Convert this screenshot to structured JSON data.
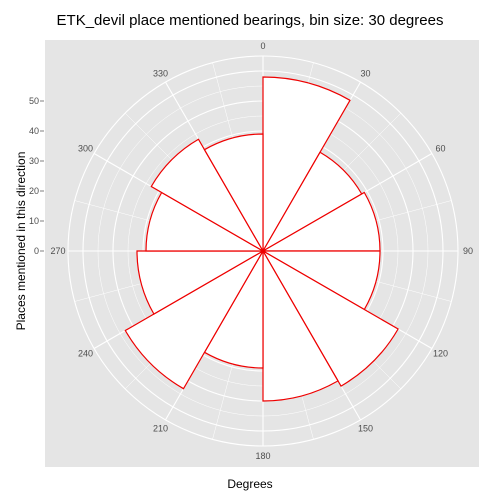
{
  "chart_data": {
    "type": "polar-bar",
    "title": "ETK_devil place mentioned bearings, bin size: 30 degrees",
    "xlabel": "Degrees",
    "ylabel": "Places mentioned in this direction",
    "bin_size": 30,
    "angle_ticks": [
      "0",
      "30",
      "60",
      "90",
      "120",
      "150",
      "180",
      "210",
      "240",
      "270",
      "300",
      "330"
    ],
    "radial_ticks": [
      "0",
      "10",
      "20",
      "30",
      "40",
      "50"
    ],
    "radial_tick_values": [
      0,
      10,
      20,
      30,
      40,
      50
    ],
    "r_max": 60,
    "bins": [
      {
        "start": 0,
        "value": 58
      },
      {
        "start": 30,
        "value": 38
      },
      {
        "start": 60,
        "value": 39
      },
      {
        "start": 90,
        "value": 39
      },
      {
        "start": 120,
        "value": 52
      },
      {
        "start": 150,
        "value": 50
      },
      {
        "start": 180,
        "value": 39
      },
      {
        "start": 210,
        "value": 53
      },
      {
        "start": 240,
        "value": 42
      },
      {
        "start": 270,
        "value": 39
      },
      {
        "start": 300,
        "value": 43
      },
      {
        "start": 330,
        "value": 39
      }
    ],
    "grid": true,
    "colors": {
      "panel": "#e5e5e5",
      "grid": "#ffffff",
      "bar_fill": "#ffffff",
      "bar_stroke": "#ee0000"
    }
  }
}
